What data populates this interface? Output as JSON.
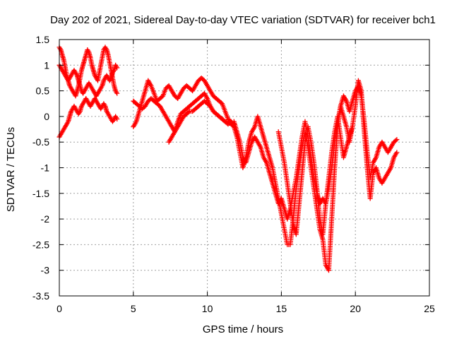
{
  "chart_data": {
    "type": "scatter",
    "title": "Day 202 of 2021, Sidereal Day-to-day VTEC variation (SDTVAR) for receiver bch1",
    "xlabel": "GPS time / hours",
    "ylabel": "SDTVAR / TECUs",
    "xlim": [
      0,
      25
    ],
    "ylim": [
      -3.5,
      1.5
    ],
    "xticks": [
      "0",
      "5",
      "10",
      "15",
      "20",
      "25"
    ],
    "yticks": [
      "1.5",
      "1",
      "0.5",
      "0",
      "-0.5",
      "-1",
      "-1.5",
      "-2",
      "-2.5",
      "-3",
      "-3.5"
    ],
    "grid": true,
    "marker": "+",
    "color": "#ff0000",
    "series": [
      {
        "x": [
          0.0,
          0.1,
          0.2,
          0.3,
          0.4,
          0.5,
          0.6,
          0.7,
          0.8,
          0.9,
          1.0,
          1.1,
          1.2,
          1.3,
          1.4,
          1.5,
          1.6,
          1.7,
          1.8,
          1.9,
          2.0,
          2.1,
          2.2,
          2.3,
          2.4,
          2.5,
          2.6,
          2.7,
          2.8,
          2.9,
          3.0,
          3.1,
          3.2,
          3.3,
          3.4,
          3.5,
          3.6,
          3.7,
          3.8,
          3.9
        ],
        "y": [
          1.35,
          1.3,
          1.2,
          1.1,
          0.95,
          0.8,
          0.7,
          0.6,
          0.55,
          0.5,
          0.45,
          0.4,
          0.5,
          0.6,
          0.75,
          0.9,
          1.0,
          1.1,
          1.2,
          1.3,
          1.25,
          1.15,
          1.0,
          0.9,
          0.8,
          0.75,
          0.7,
          0.85,
          1.0,
          1.15,
          1.3,
          1.35,
          1.3,
          1.2,
          1.05,
          0.9,
          0.75,
          0.6,
          0.5,
          0.45
        ]
      },
      {
        "x": [
          0.0,
          0.1,
          0.2,
          0.3,
          0.4,
          0.5,
          0.6,
          0.7,
          0.8,
          0.9,
          1.0,
          1.1,
          1.2,
          1.3,
          1.4,
          1.5,
          1.6,
          1.7,
          1.8,
          1.9,
          2.0,
          2.1,
          2.2,
          2.3,
          2.4,
          2.5,
          2.6,
          2.7,
          2.8,
          2.9,
          3.0,
          3.1,
          3.2,
          3.3,
          3.4,
          3.5,
          3.6,
          3.7,
          3.8,
          3.9
        ],
        "y": [
          1.0,
          0.95,
          0.9,
          0.85,
          0.8,
          0.75,
          0.7,
          0.75,
          0.8,
          0.85,
          0.9,
          0.85,
          0.8,
          0.7,
          0.6,
          0.5,
          0.45,
          0.5,
          0.55,
          0.6,
          0.65,
          0.6,
          0.55,
          0.5,
          0.45,
          0.4,
          0.45,
          0.5,
          0.55,
          0.6,
          0.7,
          0.75,
          0.8,
          0.75,
          0.7,
          0.75,
          0.85,
          0.9,
          1.0,
          0.95
        ]
      },
      {
        "x": [
          0.0,
          0.1,
          0.2,
          0.3,
          0.4,
          0.5,
          0.6,
          0.7,
          0.8,
          0.9,
          1.0,
          1.1,
          1.2,
          1.3,
          1.4,
          1.5,
          1.6,
          1.7,
          1.8,
          1.9,
          2.0,
          2.1,
          2.2,
          2.3,
          2.4,
          2.5,
          2.6,
          2.7,
          2.8,
          2.9,
          3.0,
          3.1,
          3.2,
          3.3,
          3.4,
          3.5,
          3.6,
          3.7,
          3.8,
          3.9
        ],
        "y": [
          -0.4,
          -0.35,
          -0.3,
          -0.25,
          -0.2,
          -0.15,
          -0.1,
          0.0,
          0.1,
          0.15,
          0.2,
          0.15,
          0.1,
          0.05,
          0.1,
          0.2,
          0.25,
          0.3,
          0.35,
          0.3,
          0.25,
          0.2,
          0.25,
          0.3,
          0.35,
          0.3,
          0.25,
          0.2,
          0.15,
          0.2,
          0.25,
          0.2,
          0.1,
          0.05,
          0.0,
          -0.05,
          -0.1,
          -0.05,
          0.0,
          -0.05
        ]
      },
      {
        "x": [
          5.0,
          5.2,
          5.4,
          5.6,
          5.8,
          6.0,
          6.2,
          6.4,
          6.6,
          6.8,
          7.0,
          7.2,
          7.4,
          7.6,
          7.8,
          8.0,
          8.2,
          8.4,
          8.6,
          8.8,
          9.0,
          9.2,
          9.4,
          9.6,
          9.8,
          10.0,
          10.2,
          10.4,
          10.6,
          10.8,
          11.0,
          11.2,
          11.4,
          11.6,
          11.8
        ],
        "y": [
          -0.2,
          -0.1,
          0.1,
          0.3,
          0.5,
          0.7,
          0.6,
          0.45,
          0.3,
          0.35,
          0.4,
          0.55,
          0.6,
          0.5,
          0.4,
          0.35,
          0.45,
          0.55,
          0.6,
          0.55,
          0.5,
          0.6,
          0.7,
          0.75,
          0.7,
          0.6,
          0.5,
          0.4,
          0.35,
          0.3,
          0.25,
          0.1,
          -0.05,
          -0.1,
          -0.2
        ]
      },
      {
        "x": [
          5.0,
          5.2,
          5.4,
          5.6,
          5.8,
          6.0,
          6.2,
          6.4,
          6.6,
          6.8,
          7.0,
          7.2,
          7.4,
          7.6,
          7.8,
          8.0,
          8.2,
          8.4,
          8.6,
          8.8,
          9.0,
          9.2,
          9.4,
          9.6,
          9.8,
          10.0,
          10.2,
          10.4,
          10.6,
          10.8,
          11.0,
          11.2,
          11.4,
          11.6,
          11.8
        ],
        "y": [
          0.3,
          0.25,
          0.2,
          0.15,
          0.2,
          0.3,
          0.35,
          0.3,
          0.25,
          0.2,
          0.1,
          0.0,
          -0.1,
          -0.2,
          -0.3,
          -0.1,
          0.05,
          0.1,
          0.15,
          0.2,
          0.25,
          0.3,
          0.35,
          0.4,
          0.45,
          0.35,
          0.2,
          0.1,
          0.05,
          0.0,
          -0.05,
          -0.1,
          -0.15,
          -0.1,
          -0.15
        ]
      },
      {
        "x": [
          7.4,
          7.6,
          7.8,
          8.0,
          8.2,
          8.4,
          8.6,
          8.8,
          9.0,
          9.2,
          9.4,
          9.6,
          9.8,
          10.0,
          10.2,
          10.4,
          10.6,
          10.8,
          11.0,
          11.2,
          11.4,
          11.6,
          11.8
        ],
        "y": [
          -0.5,
          -0.4,
          -0.3,
          -0.2,
          -0.1,
          0.0,
          0.05,
          0.1,
          0.1,
          0.15,
          0.2,
          0.25,
          0.3,
          0.25,
          0.2,
          0.1,
          0.05,
          0.0,
          -0.05,
          -0.1,
          -0.1,
          -0.15,
          -0.2
        ]
      },
      {
        "x": [
          11.8,
          12.0,
          12.2,
          12.4,
          12.6,
          12.8,
          13.0,
          13.2,
          13.4,
          13.6,
          13.8,
          14.0,
          14.2,
          14.4,
          14.6,
          14.8,
          15.0,
          15.2,
          15.4,
          15.6,
          15.8,
          16.0,
          16.2,
          16.4,
          16.6,
          16.8,
          17.0,
          17.2,
          17.4,
          17.6,
          17.8,
          18.0,
          18.2,
          18.4,
          18.6,
          18.8,
          19.0,
          19.2,
          19.4,
          19.6,
          19.8,
          20.0,
          20.2,
          20.4,
          20.6,
          20.8,
          21.0,
          21.2,
          21.4,
          21.6,
          21.8,
          22.0,
          22.2,
          22.4,
          22.6,
          22.8
        ],
        "y": [
          -0.2,
          -0.4,
          -0.7,
          -1.0,
          -0.8,
          -0.5,
          -0.3,
          -0.2,
          0.0,
          -0.2,
          -0.4,
          -0.6,
          -0.8,
          -1.0,
          -1.3,
          -1.6,
          -1.9,
          -2.2,
          -2.5,
          -2.5,
          -2.0,
          -1.4,
          -1.0,
          -0.6,
          -0.3,
          -0.6,
          -1.0,
          -1.4,
          -1.8,
          -2.2,
          -2.4,
          -2.9,
          -3.0,
          -2.0,
          -1.0,
          -0.2,
          0.2,
          0.0,
          -0.2,
          -0.5,
          -0.2,
          0.2,
          0.7,
          0.5,
          -0.3,
          -1.0,
          -1.6,
          -1.1,
          -1.0,
          -1.2,
          -1.3,
          -1.2,
          -1.1,
          -1.0,
          -0.8,
          -0.7
        ]
      },
      {
        "x": [
          11.8,
          12.0,
          12.2,
          12.4,
          12.6,
          12.8,
          13.0,
          13.2,
          13.4,
          13.6,
          13.8,
          14.0,
          14.2,
          14.4,
          14.6,
          14.8,
          15.0,
          15.2,
          15.4,
          15.6,
          15.8,
          16.0,
          16.2,
          16.4,
          16.6,
          16.8,
          17.0,
          17.2,
          17.4,
          17.6,
          17.8,
          18.0,
          18.2,
          18.4,
          18.6,
          18.8,
          19.0,
          19.2,
          19.4,
          19.6,
          19.8,
          20.0,
          20.2,
          20.4,
          20.6,
          20.8,
          21.0,
          21.2,
          21.4,
          21.6,
          21.8,
          22.0,
          22.2,
          22.4,
          22.6,
          22.8
        ],
        "y": [
          -0.1,
          -0.3,
          -0.5,
          -0.8,
          -0.9,
          -0.7,
          -0.5,
          -0.4,
          -0.5,
          -0.6,
          -0.8,
          -0.9,
          -1.1,
          -1.3,
          -1.5,
          -1.7,
          -1.6,
          -1.8,
          -2.0,
          -1.8,
          -1.5,
          -1.2,
          -0.8,
          -0.4,
          -0.1,
          -0.4,
          -0.8,
          -1.2,
          -1.5,
          -1.7,
          -1.6,
          -1.7,
          -1.4,
          -1.0,
          -0.5,
          -0.1,
          0.2,
          0.4,
          0.3,
          0.1,
          0.3,
          0.5,
          0.6,
          0.4,
          -0.1,
          -0.7,
          -1.2,
          -0.9,
          -0.8,
          -0.6,
          -0.5,
          -0.6,
          -0.7,
          -0.6,
          -0.5,
          -0.45
        ]
      },
      {
        "x": [
          14.8,
          15.0,
          15.2,
          15.4,
          15.6,
          15.8,
          16.0,
          16.2,
          16.4,
          16.6,
          16.8,
          17.0,
          17.2,
          17.4,
          17.6,
          17.8,
          18.0,
          18.2,
          18.4,
          18.6,
          18.8,
          19.0,
          19.2,
          19.4,
          19.6,
          19.8
        ],
        "y": [
          -0.3,
          -0.6,
          -0.9,
          -1.3,
          -1.7,
          -2.1,
          -2.3,
          -1.7,
          -1.1,
          -0.5,
          -0.2,
          -0.5,
          -0.9,
          -1.4,
          -2.0,
          -2.3,
          -1.7,
          -1.2,
          -0.7,
          -0.3,
          0.0,
          -0.4,
          -0.8,
          -0.6,
          -0.4,
          -0.2
        ]
      }
    ]
  }
}
